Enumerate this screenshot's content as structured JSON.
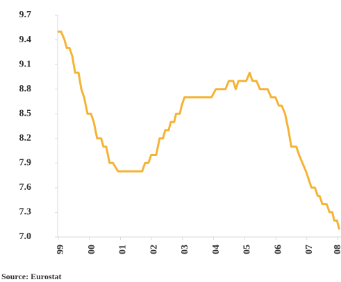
{
  "chart_data": {
    "type": "line",
    "source": "Source: Eurostat",
    "color": "#f5b335",
    "x": [
      1999.0,
      1999.09,
      1999.2,
      1999.27,
      1999.36,
      1999.45,
      1999.54,
      1999.65,
      1999.74,
      1999.83,
      1999.94,
      2000.05,
      2000.14,
      2000.25,
      2000.38,
      2000.45,
      2000.54,
      2000.65,
      2000.76,
      2000.92,
      2001.7,
      2001.79,
      2001.9,
      2001.99,
      2002.15,
      2002.26,
      2002.37,
      2002.44,
      2002.55,
      2002.62,
      2002.73,
      2002.79,
      2002.91,
      2002.97,
      2003.06,
      2003.93,
      2004.07,
      2004.38,
      2004.49,
      2004.63,
      2004.71,
      2004.8,
      2005.05,
      2005.16,
      2005.25,
      2005.38,
      2005.49,
      2005.74,
      2005.85,
      2005.99,
      2006.1,
      2006.19,
      2006.3,
      2006.41,
      2006.5,
      2006.66,
      2006.75,
      2006.86,
      2006.97,
      2007.06,
      2007.15,
      2007.26,
      2007.35,
      2007.41,
      2007.5,
      2007.64,
      2007.73,
      2007.82,
      2007.88,
      2007.97,
      2008.04
    ],
    "values": [
      9.5,
      9.5,
      9.4,
      9.3,
      9.3,
      9.2,
      9.0,
      9.0,
      8.8,
      8.7,
      8.5,
      8.5,
      8.4,
      8.2,
      8.2,
      8.1,
      8.1,
      7.9,
      7.9,
      7.8,
      7.8,
      7.9,
      7.9,
      8.0,
      8.0,
      8.2,
      8.2,
      8.3,
      8.3,
      8.4,
      8.4,
      8.5,
      8.5,
      8.6,
      8.7,
      8.7,
      8.8,
      8.8,
      8.9,
      8.9,
      8.8,
      8.9,
      8.9,
      9.0,
      8.9,
      8.9,
      8.8,
      8.8,
      8.7,
      8.7,
      8.6,
      8.6,
      8.5,
      8.3,
      8.1,
      8.1,
      8.0,
      7.9,
      7.8,
      7.7,
      7.6,
      7.6,
      7.5,
      7.5,
      7.4,
      7.4,
      7.3,
      7.3,
      7.2,
      7.2,
      7.1
    ],
    "xlim": [
      1999,
      2008.1
    ],
    "xticks": [
      {
        "value": 1999,
        "label": "99"
      },
      {
        "value": 2000,
        "label": "00"
      },
      {
        "value": 2001,
        "label": "01"
      },
      {
        "value": 2002,
        "label": "02"
      },
      {
        "value": 2003,
        "label": "03"
      },
      {
        "value": 2004,
        "label": "04"
      },
      {
        "value": 2005,
        "label": "05"
      },
      {
        "value": 2006,
        "label": "06"
      },
      {
        "value": 2007,
        "label": "07"
      },
      {
        "value": 2008,
        "label": "08"
      }
    ],
    "ylim": [
      7.0,
      9.7
    ],
    "yticks": [
      {
        "value": 7,
        "label": "7.0"
      },
      7.3,
      7.6,
      7.9,
      8.2,
      8.5,
      8.8,
      9.1,
      9.4,
      9.7
    ]
  }
}
